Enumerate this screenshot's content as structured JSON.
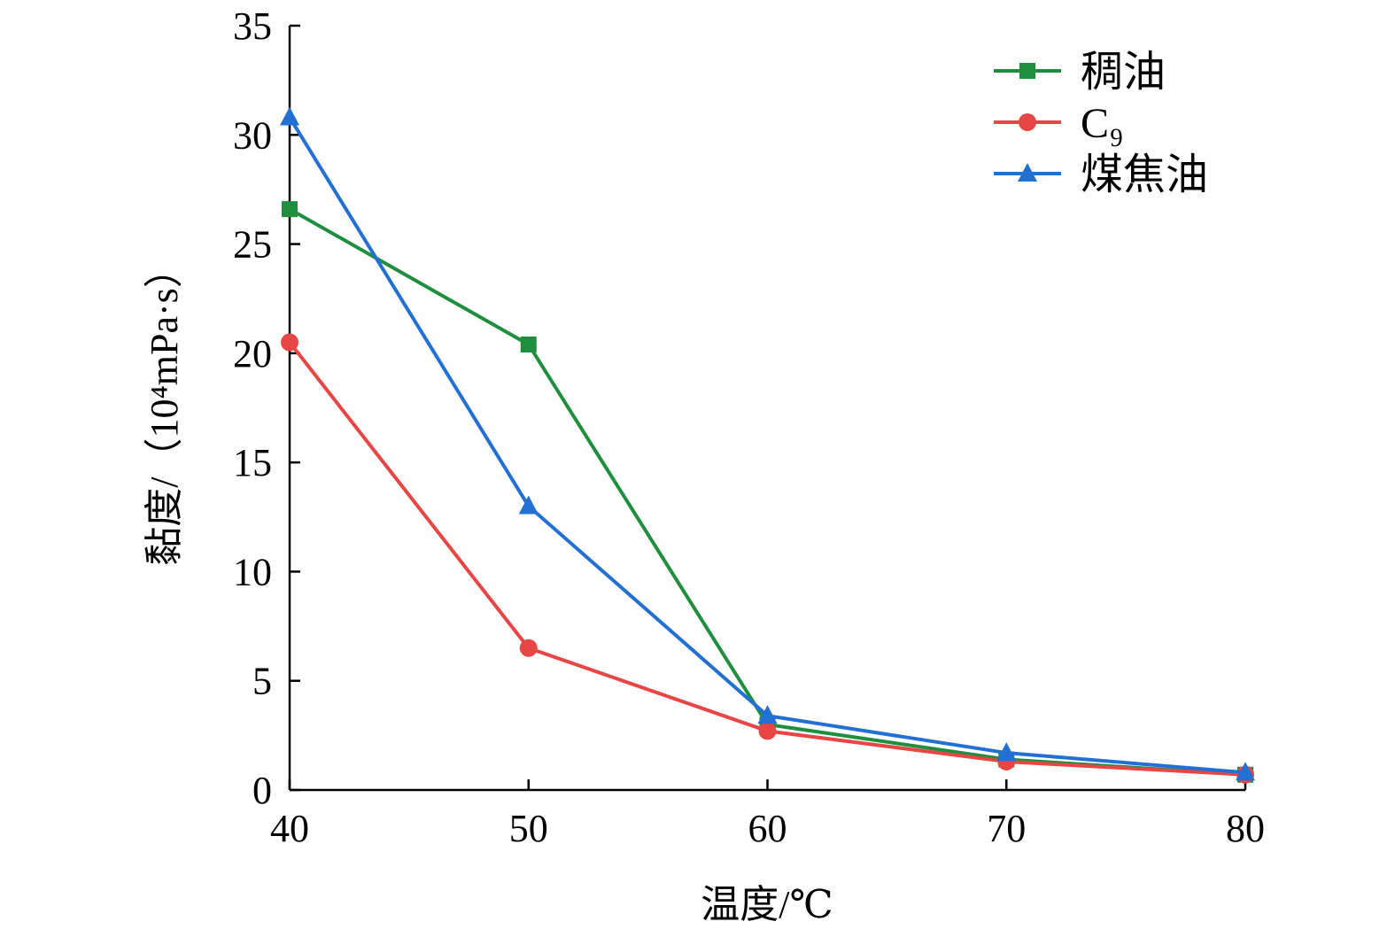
{
  "chart_data": {
    "type": "line",
    "title": "",
    "xlabel": "温度/℃",
    "ylabel": "黏度/（10⁴mPa·s）",
    "x": [
      40,
      50,
      60,
      70,
      80
    ],
    "xticks": [
      40,
      50,
      60,
      70,
      80
    ],
    "yticks": [
      0,
      5,
      10,
      15,
      20,
      25,
      30,
      35
    ],
    "xlim": [
      40,
      80
    ],
    "ylim": [
      0,
      35
    ],
    "grid": false,
    "legend_position": "top-right",
    "series": [
      {
        "name": "稠油",
        "values": [
          26.6,
          20.4,
          3.0,
          1.4,
          0.7
        ],
        "color": "#1f8f3f",
        "marker": "square"
      },
      {
        "name": "C₉",
        "values": [
          20.5,
          6.5,
          2.7,
          1.3,
          0.7
        ],
        "color": "#e84545",
        "marker": "circle"
      },
      {
        "name": "煤焦油",
        "values": [
          30.8,
          13.0,
          3.4,
          1.7,
          0.8
        ],
        "color": "#2270d4",
        "marker": "triangle"
      }
    ]
  }
}
